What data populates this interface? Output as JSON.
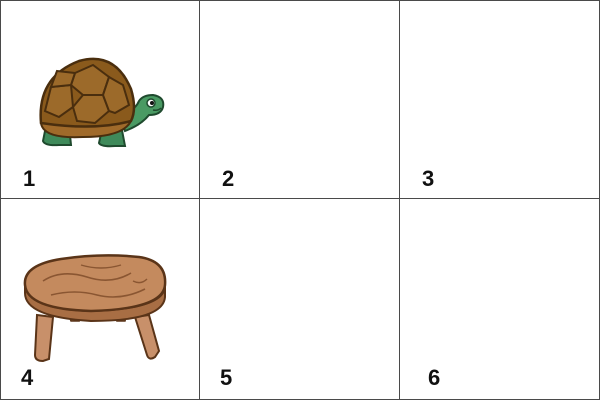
{
  "grid": {
    "cells": [
      {
        "number": "1",
        "item": "turtle-icon"
      },
      {
        "number": "2",
        "item": ""
      },
      {
        "number": "3",
        "item": ""
      },
      {
        "number": "4",
        "item": "stool-icon"
      },
      {
        "number": "5",
        "item": ""
      },
      {
        "number": "6",
        "item": ""
      }
    ]
  },
  "colors": {
    "grid_line": "#4a4a4a",
    "turtle_shell": "#8a5a1c",
    "turtle_skin": "#3f8a5a",
    "stool_wood": "#c48a5e"
  }
}
